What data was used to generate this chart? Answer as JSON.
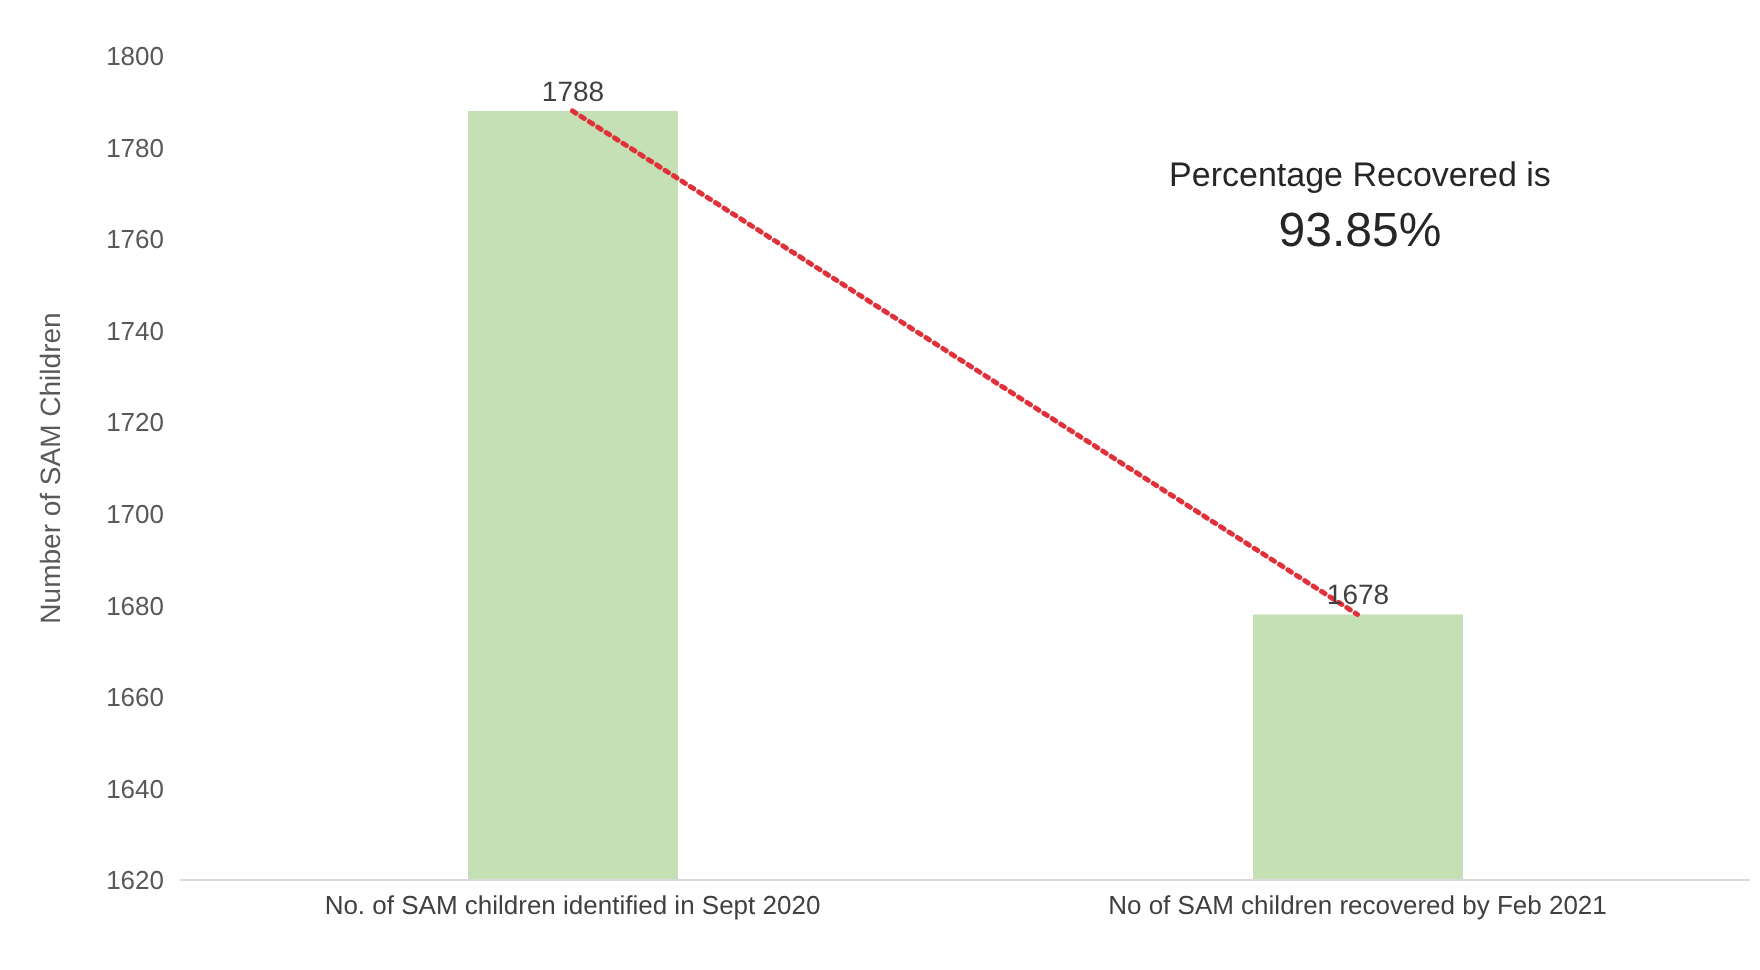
{
  "chart_data": {
    "type": "bar",
    "ylabel": "Number of SAM Children",
    "categories": [
      "No. of SAM children identified in Sept 2020",
      "No of SAM children recovered by Feb 2021"
    ],
    "series": [
      {
        "color": "#c5e0b4",
        "values": [
          1788,
          1678
        ],
        "value_labels": [
          "1788",
          "1678"
        ]
      },
      {
        "type": "line",
        "color": "#e0303a",
        "values": [
          1788,
          1678
        ],
        "line_style": "dotted",
        "marker": "none"
      }
    ],
    "ylim": [
      1620,
      1800
    ],
    "yticks": [
      1620,
      1640,
      1660,
      1680,
      1700,
      1720,
      1740,
      1760,
      1780,
      1800
    ],
    "grid": false,
    "legend": false,
    "annotations": [
      "Percentage Recovered is",
      "93.85%"
    ]
  }
}
